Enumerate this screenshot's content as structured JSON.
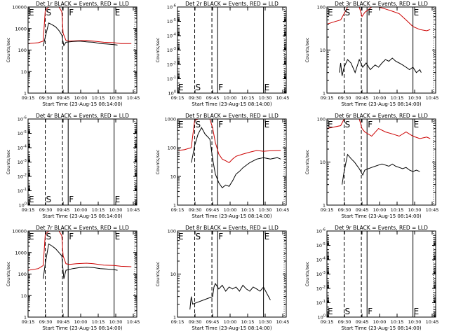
{
  "figure": {
    "x_tick_labels": [
      "09:15",
      "09:30",
      "09:45",
      "10:00",
      "10:15",
      "10:30",
      "10:45"
    ],
    "event_markers": [
      {
        "letter": "E",
        "time": 9.25,
        "style": "none"
      },
      {
        "letter": "S",
        "time": 9.5,
        "style": "dashed"
      },
      {
        "letter": "",
        "time": 9.75,
        "style": "dashed"
      },
      {
        "letter": "F",
        "time": 9.833,
        "style": "solid"
      },
      {
        "letter": "E",
        "time": 10.5,
        "style": "solid"
      },
      {
        "letter": "",
        "time": 10.8,
        "style": "dotted"
      }
    ]
  },
  "chart_data": [
    {
      "type": "line",
      "title": "Det 1r BLACK = Events, RED = LLD",
      "xlabel": "Start Time (23-Aug-15 08:14:00)",
      "ylabel": "Counts/sec",
      "yscale": "log",
      "ylim": [
        1,
        10000
      ],
      "xlim": [
        9.25,
        10.83
      ],
      "y_tick_labels": [
        "1",
        "10",
        "100",
        "1000",
        "10000"
      ],
      "series": [
        {
          "name": "LLD",
          "color": "#cc0000",
          "x": [
            9.25,
            9.4,
            9.47,
            9.5,
            9.55,
            9.6,
            9.65,
            9.7,
            9.74,
            9.76,
            9.8,
            9.85,
            9.95,
            10.1,
            10.2,
            10.35,
            10.5,
            10.6,
            10.75
          ],
          "y": [
            200,
            220,
            260,
            7000,
            10000,
            10000,
            10000,
            10000,
            6000,
            600,
            280,
            260,
            270,
            280,
            260,
            230,
            220,
            200,
            200
          ]
        },
        {
          "name": "Events",
          "color": "#000000",
          "x": [
            9.47,
            9.5,
            9.55,
            9.6,
            9.65,
            9.7,
            9.74,
            9.77,
            9.8,
            9.9,
            10.0,
            10.1,
            10.2,
            10.3,
            10.4,
            10.5,
            10.55
          ],
          "y": [
            150,
            400,
            1800,
            1500,
            1200,
            800,
            500,
            160,
            230,
            250,
            260,
            240,
            230,
            200,
            190,
            180,
            170
          ]
        }
      ]
    },
    {
      "type": "line",
      "title": "Det 2r BLACK = Events, RED = LLD",
      "xlabel": "Start Time (23-Aug-15 08:14:00)",
      "ylabel": "Counts/sec",
      "yscale": "log",
      "ylim": [
        1,
        1e-06
      ],
      "xlim": [
        9.25,
        10.83
      ],
      "y_tick_labels": [
        "10^0",
        "10^-1",
        "10^-2",
        "10^-3",
        "10^-4",
        "10^-5",
        "10^-6"
      ],
      "series": []
    },
    {
      "type": "line",
      "title": "Det 3r BLACK = Events, RED = LLD",
      "xlabel": "Start Time (23-Aug-15 08:14:00)",
      "ylabel": "Counts/sec",
      "yscale": "log",
      "ylim": [
        1,
        100
      ],
      "xlim": [
        9.25,
        10.83
      ],
      "y_tick_labels": [
        "1",
        "10",
        "100"
      ],
      "series": [
        {
          "name": "LLD",
          "color": "#cc0000",
          "x": [
            9.25,
            9.35,
            9.45,
            9.5,
            9.55,
            9.65,
            9.72,
            9.76,
            9.8,
            9.9,
            10.0,
            10.1,
            10.2,
            10.3,
            10.4,
            10.5,
            10.6,
            10.7,
            10.75
          ],
          "y": [
            40,
            45,
            50,
            70,
            100,
            100,
            100,
            60,
            75,
            100,
            100,
            90,
            80,
            70,
            50,
            35,
            30,
            28,
            30
          ]
        },
        {
          "name": "Events",
          "color": "#000000",
          "x": [
            9.43,
            9.45,
            9.47,
            9.5,
            9.55,
            9.6,
            9.66,
            9.72,
            9.77,
            9.82,
            9.88,
            9.95,
            10.0,
            10.05,
            10.1,
            10.15,
            10.2,
            10.25,
            10.3,
            10.35,
            10.4,
            10.45,
            10.5,
            10.55,
            10.6,
            10.62
          ],
          "y": [
            3,
            5,
            2.5,
            4,
            6,
            5,
            3,
            6,
            4,
            5,
            3.5,
            4.5,
            4,
            5,
            6,
            5.5,
            6.5,
            5.5,
            5,
            4.5,
            4,
            3.5,
            4,
            3,
            3.5,
            3
          ]
        }
      ]
    },
    {
      "type": "line",
      "title": "Det 4r BLACK = Events, RED = LLD",
      "xlabel": "Start Time (23-Aug-15 08:14:00)",
      "ylabel": "Counts/sec",
      "yscale": "log",
      "ylim": [
        1,
        1e-06
      ],
      "xlim": [
        9.25,
        10.83
      ],
      "y_tick_labels": [
        "10^0",
        "10^-1",
        "10^-2",
        "10^-3",
        "10^-4",
        "10^-5",
        "10^-6"
      ],
      "series": []
    },
    {
      "type": "line",
      "title": "Det 5r BLACK = Events, RED = LLD",
      "xlabel": "Start Time (23-Aug-15 08:14:00)",
      "ylabel": "Counts/sec",
      "yscale": "log",
      "ylim": [
        1,
        1000
      ],
      "xlim": [
        9.25,
        10.83
      ],
      "y_tick_labels": [
        "1",
        "10",
        "100",
        "1000"
      ],
      "series": [
        {
          "name": "LLD",
          "color": "#cc0000",
          "x": [
            9.25,
            9.35,
            9.45,
            9.5,
            9.55,
            9.65,
            9.72,
            9.76,
            9.8,
            9.85,
            9.9,
            9.95,
            10.0,
            10.05,
            10.1,
            10.2,
            10.3,
            10.4,
            10.5,
            10.6,
            10.75
          ],
          "y": [
            80,
            85,
            100,
            900,
            1000,
            1000,
            1000,
            500,
            150,
            60,
            40,
            35,
            30,
            40,
            50,
            60,
            70,
            80,
            75,
            78,
            80
          ]
        },
        {
          "name": "Events",
          "color": "#000000",
          "x": [
            9.45,
            9.47,
            9.5,
            9.55,
            9.6,
            9.65,
            9.72,
            9.77,
            9.8,
            9.85,
            9.9,
            9.95,
            10.0,
            10.05,
            10.1,
            10.15,
            10.2,
            10.3,
            10.4,
            10.5,
            10.6,
            10.7,
            10.75
          ],
          "y": [
            30,
            50,
            120,
            300,
            500,
            300,
            200,
            30,
            12,
            6,
            4,
            5,
            4.5,
            7,
            12,
            15,
            20,
            30,
            40,
            45,
            40,
            45,
            40
          ]
        }
      ]
    },
    {
      "type": "line",
      "title": "Det 6r BLACK = Events, RED = LLD",
      "xlabel": "Start Time (23-Aug-15 08:14:00)",
      "ylabel": "Counts/sec",
      "yscale": "log",
      "ylim": [
        1,
        100
      ],
      "xlim": [
        9.25,
        10.83
      ],
      "y_tick_labels": [
        "1",
        "10",
        "100"
      ],
      "series": [
        {
          "name": "LLD",
          "color": "#cc0000",
          "x": [
            9.25,
            9.35,
            9.45,
            9.5,
            9.55,
            9.65,
            9.72,
            9.76,
            9.8,
            9.9,
            10.0,
            10.1,
            10.2,
            10.3,
            10.4,
            10.5,
            10.6,
            10.7,
            10.75
          ],
          "y": [
            60,
            65,
            70,
            100,
            100,
            100,
            100,
            60,
            50,
            40,
            60,
            50,
            45,
            40,
            50,
            40,
            35,
            38,
            35
          ]
        },
        {
          "name": "Events",
          "color": "#000000",
          "x": [
            9.47,
            9.5,
            9.55,
            9.6,
            9.65,
            9.72,
            9.77,
            9.8,
            9.85,
            9.9,
            9.95,
            10.0,
            10.05,
            10.1,
            10.15,
            10.2,
            10.25,
            10.3,
            10.35,
            10.4,
            10.45,
            10.5,
            10.55,
            10.6
          ],
          "y": [
            3,
            6,
            15,
            12,
            10,
            7,
            5,
            6.5,
            7,
            7.5,
            8,
            8.5,
            9,
            8.5,
            8,
            9,
            8,
            7.5,
            7,
            7.5,
            6.5,
            6,
            6.5,
            6
          ]
        }
      ]
    },
    {
      "type": "line",
      "title": "Det 7r BLACK = Events, RED = LLD",
      "xlabel": "Start Time (23-Aug-15 08:14:00)",
      "ylabel": "Counts/sec",
      "yscale": "log",
      "ylim": [
        1,
        10000
      ],
      "xlim": [
        9.25,
        10.83
      ],
      "y_tick_labels": [
        "1",
        "10",
        "100",
        "1000",
        "10000"
      ],
      "series": [
        {
          "name": "LLD",
          "color": "#cc0000",
          "x": [
            9.25,
            9.4,
            9.47,
            9.5,
            9.55,
            9.6,
            9.65,
            9.7,
            9.74,
            9.76,
            9.8,
            9.85,
            9.95,
            10.1,
            10.2,
            10.35,
            10.5,
            10.6,
            10.75
          ],
          "y": [
            150,
            180,
            250,
            7000,
            10000,
            10000,
            10000,
            10000,
            6000,
            700,
            300,
            280,
            300,
            320,
            300,
            260,
            250,
            230,
            220
          ]
        },
        {
          "name": "Events",
          "color": "#000000",
          "x": [
            9.47,
            9.5,
            9.55,
            9.6,
            9.65,
            9.7,
            9.74,
            9.77,
            9.8,
            9.9,
            10.0,
            10.1,
            10.2,
            10.3,
            10.4,
            10.5,
            10.55
          ],
          "y": [
            60,
            300,
            2500,
            2000,
            1500,
            1000,
            700,
            60,
            150,
            180,
            200,
            210,
            200,
            180,
            170,
            160,
            150
          ]
        }
      ]
    },
    {
      "type": "line",
      "title": "Det 8r BLACK = Events, RED = LLD",
      "xlabel": "Start Time (23-Aug-15 08:14:00)",
      "ylabel": "Counts/sec",
      "yscale": "log",
      "ylim": [
        1,
        100
      ],
      "xlim": [
        9.25,
        10.83
      ],
      "y_tick_labels": [
        "1",
        "10",
        "100"
      ],
      "series": [
        {
          "name": "Events",
          "color": "#000000",
          "x": [
            9.43,
            9.45,
            9.47,
            9.76,
            9.78,
            9.8,
            9.85,
            9.9,
            9.95,
            10.0,
            10.05,
            10.1,
            10.15,
            10.2,
            10.25,
            10.3,
            10.35,
            10.4,
            10.45,
            10.5,
            10.55,
            10.6
          ],
          "y": [
            1.5,
            3,
            2,
            3,
            5,
            6,
            4.5,
            5.5,
            4,
            5,
            4.5,
            5,
            4,
            5.5,
            4.5,
            4,
            5,
            4.5,
            4,
            5,
            3.5,
            2.5
          ]
        }
      ]
    },
    {
      "type": "line",
      "title": "Det 9r BLACK = Events, RED = LLD",
      "xlabel": "Start Time (23-Aug-15 08:14:00)",
      "ylabel": "Counts/sec",
      "yscale": "log",
      "ylim": [
        1,
        1e-06
      ],
      "xlim": [
        9.25,
        10.83
      ],
      "y_tick_labels": [
        "10^0",
        "10^-1",
        "10^-2",
        "10^-3",
        "10^-4",
        "10^-5",
        "10^-6"
      ],
      "series": []
    }
  ]
}
